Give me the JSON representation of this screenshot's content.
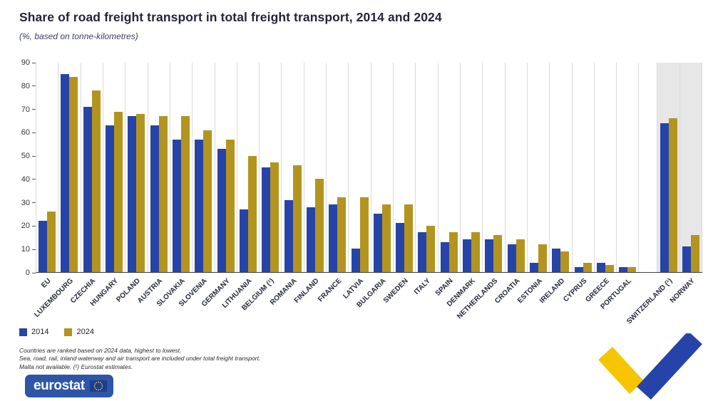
{
  "title": "Share of road freight transport in total freight transport, 2014 and 2024",
  "subtitle": "(%, based on tonne-kilometres)",
  "chart_data": {
    "type": "bar",
    "title": "Share of road freight transport in total freight transport, 2014 and 2024",
    "subtitle": "(%, based on tonne-kilometres)",
    "xlabel": "",
    "ylabel": "",
    "ylim": [
      0,
      90
    ],
    "yticks": [
      0,
      10,
      20,
      30,
      40,
      50,
      60,
      70,
      80,
      90
    ],
    "grid": "vertical-category-separators",
    "legend_position": "bottom-left",
    "categories": [
      "EU",
      "LUXEMBOURG",
      "CZECHIA",
      "HUNGARY",
      "POLAND",
      "AUSTRIA",
      "SLOVAKIA",
      "SLOVENIA",
      "GERMANY",
      "LITHUANIA",
      "BELGIUM (¹)",
      "ROMANIA",
      "FINLAND",
      "FRANCE",
      "LATVIA",
      "BULGARIA",
      "SWEDEN",
      "ITALY",
      "SPAIN",
      "DENMARK",
      "NETHERLANDS",
      "CROATIA",
      "ESTONIA",
      "IRELAND",
      "CYPRUS",
      "GREECE",
      "PORTUGAL",
      "SWITZERLAND (¹)",
      "NORWAY"
    ],
    "series": [
      {
        "name": "2014",
        "color": "#2644A7",
        "values": [
          22,
          85,
          71,
          63,
          67,
          63,
          57,
          57,
          53,
          27,
          45,
          31,
          28,
          29,
          10,
          25,
          21,
          17,
          13,
          14,
          14,
          12,
          4,
          10,
          2,
          4,
          2,
          64,
          11
        ]
      },
      {
        "name": "2024",
        "color": "#B3941F",
        "values": [
          26,
          84,
          78,
          69,
          68,
          67,
          67,
          61,
          57,
          50,
          47,
          46,
          40,
          32,
          32,
          29,
          29,
          20,
          17,
          17,
          16,
          14,
          12,
          9,
          4,
          3,
          2,
          66,
          16
        ]
      }
    ],
    "separator_before_index": 27,
    "shaded_from_index": 27
  },
  "footnotes": [
    "Countries are ranked based on 2024 data, highest to lowest.",
    "Sea, road, rail, inland waterway and air transport are included under total freight transport.",
    "Malta not available. (¹) Eurostat estimates."
  ],
  "logo_text": "eurostat",
  "colors": {
    "bar_2014_blue": "#2644A7",
    "bar_2024_gold": "#B3941F",
    "shaded_background": "#E7E7E7",
    "logo_blue": "#2E56A6",
    "flag_blue": "#1C3C96",
    "star_yellow": "#FFD617",
    "ribbon_yellow": "#F6C500",
    "ribbon_blue": "#2644A7"
  }
}
